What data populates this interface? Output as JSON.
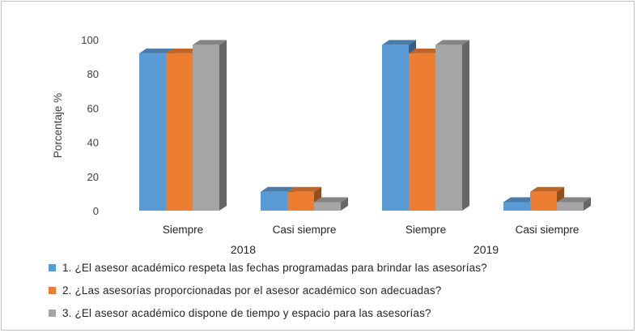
{
  "chart_data": {
    "type": "bar",
    "style": "3d-clustered-column",
    "ylabel": "Porcentaje %",
    "ylim": [
      0,
      100
    ],
    "yticks": [
      0,
      20,
      40,
      60,
      80,
      100
    ],
    "grid": false,
    "legend_position": "bottom",
    "groups": [
      {
        "year": "2018",
        "categories": [
          "Siempre",
          "Casi siempre"
        ]
      },
      {
        "year": "2019",
        "categories": [
          "Siempre",
          "Casi siempre"
        ]
      }
    ],
    "x_categories": [
      "Siempre",
      "Casi siempre",
      "Siempre",
      "Casi siempre"
    ],
    "series": [
      {
        "name": "1. ¿El asesor académico respeta las fechas programadas para brindar las asesorías?",
        "color": "#5B9BD5",
        "values": [
          92,
          11,
          97,
          5
        ]
      },
      {
        "name": "2. ¿Las asesorías proporcionadas por el asesor académico son adecuadas?",
        "color": "#ED7D31",
        "values": [
          92,
          11,
          92,
          11
        ]
      },
      {
        "name": "3. ¿El asesor académico dispone de tiempo y espacio para las asesorías?",
        "color": "#A5A5A5",
        "values": [
          97,
          5,
          97,
          5
        ]
      }
    ]
  }
}
